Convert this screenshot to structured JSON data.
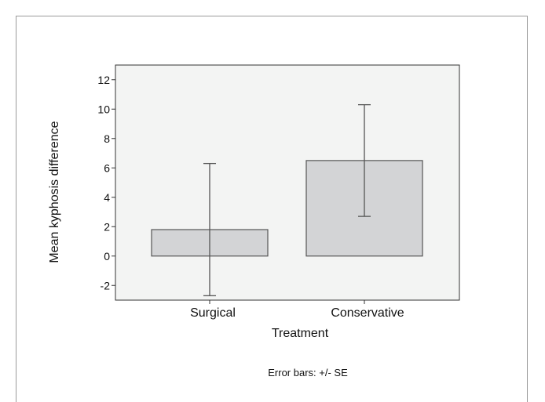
{
  "chart_data": {
    "type": "bar",
    "categories": [
      "Surgical",
      "Conservative"
    ],
    "values": [
      1.8,
      6.5
    ],
    "error_lower": [
      -2.7,
      2.7
    ],
    "error_upper": [
      6.3,
      10.3
    ],
    "xlabel": "Treatment",
    "ylabel": "Mean kyphosis difference",
    "ylim": [
      -3,
      13
    ],
    "yticks": [
      12,
      10,
      8,
      6,
      4,
      2,
      0,
      -2
    ],
    "ytick_labels": [
      "12",
      "10",
      "8",
      "6",
      "4",
      "2",
      "0",
      "-2"
    ],
    "grid": false,
    "note": "Error bars: +/- SE",
    "colors": {
      "plot_bg": "#f3f4f3",
      "bar_fill": "#d3d4d6",
      "bar_stroke": "#555555",
      "error_bar": "#555555"
    }
  }
}
